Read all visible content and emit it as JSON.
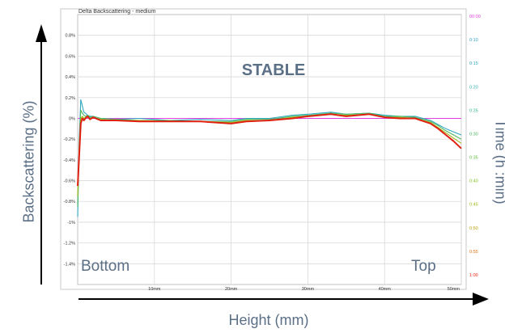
{
  "chart_data": {
    "type": "line",
    "title": "Delta Backscattering - medium",
    "annotation": "STABLE",
    "ylabel": "Backscattering (%)",
    "xlabel": "Height (mm)",
    "right_label": "Time (h :min)",
    "corner_labels": {
      "left": "Bottom",
      "right": "Top"
    },
    "x_unit": "mm",
    "xlim": [
      0,
      50
    ],
    "ylim": [
      -1.6,
      1.0
    ],
    "grid": true,
    "x_ticks": [
      10,
      20,
      30,
      40,
      50
    ],
    "x_tick_labels": [
      "10mm",
      "20mm",
      "30mm",
      "40mm",
      "50mm"
    ],
    "y_ticks": [
      0.8,
      0.6,
      0.4,
      0.2,
      0,
      -0.2,
      -0.4,
      -0.6,
      -0.8,
      -1,
      -1.2,
      -1.4
    ],
    "y_tick_labels": [
      "0.8%",
      "0.6%",
      "0.4%",
      "0.2%",
      "0%",
      "-0.2%",
      "-0.4%",
      "-0.6%",
      "-0.8%",
      "-1%",
      "-1.2%",
      "-1.4%"
    ],
    "legend": {
      "placement": "right",
      "entries": [
        {
          "label": "00:00",
          "color": "#e040e0"
        },
        {
          "label": "0:10",
          "color": "#30a0c8"
        },
        {
          "label": "0:15",
          "color": "#30a8c0"
        },
        {
          "label": "0:20",
          "color": "#30b0a8"
        },
        {
          "label": "0:25",
          "color": "#30b890"
        },
        {
          "label": "0:30",
          "color": "#50b860"
        },
        {
          "label": "0:35",
          "color": "#60c040"
        },
        {
          "label": "0:40",
          "color": "#80c020"
        },
        {
          "label": "0:45",
          "color": "#a0b818"
        },
        {
          "label": "0:50",
          "color": "#c0a010"
        },
        {
          "label": "0:55",
          "color": "#e07010"
        },
        {
          "label": "1:00",
          "color": "#e02010"
        }
      ]
    },
    "series": [
      {
        "color": "#e040e0",
        "x": [
          0,
          0.3,
          0.6,
          5,
          10,
          20,
          30,
          40,
          45,
          48,
          50
        ],
        "y": [
          0,
          0,
          0,
          0,
          0,
          0,
          0,
          0,
          0,
          0,
          0
        ]
      },
      {
        "color": "#30a8c0",
        "x": [
          0,
          0.2,
          0.4,
          0.6,
          0.8,
          1.0,
          1.3,
          1.6,
          2,
          3,
          5,
          8,
          12,
          16,
          20,
          22,
          25,
          28,
          30,
          33,
          35,
          38,
          40,
          42,
          44,
          46,
          47,
          48,
          49,
          50
        ],
        "y": [
          -0.95,
          -0.2,
          0.18,
          0.12,
          0.06,
          0.05,
          0.03,
          0.02,
          0.02,
          0.0,
          -0.01,
          0.0,
          -0.02,
          -0.01,
          -0.02,
          0.0,
          0.0,
          0.03,
          0.04,
          0.06,
          0.04,
          0.05,
          0.03,
          0.02,
          0.02,
          -0.02,
          -0.06,
          -0.1,
          -0.13,
          -0.16
        ]
      },
      {
        "color": "#50b860",
        "x": [
          0,
          0.2,
          0.4,
          0.6,
          0.8,
          1.0,
          1.3,
          1.6,
          2,
          3,
          5,
          8,
          12,
          16,
          20,
          22,
          25,
          28,
          30,
          33,
          35,
          38,
          40,
          42,
          44,
          46,
          47,
          48,
          49,
          50
        ],
        "y": [
          -0.85,
          -0.25,
          0.08,
          0.05,
          0.03,
          0.02,
          0.03,
          0.01,
          0.02,
          0.0,
          -0.01,
          -0.02,
          -0.02,
          -0.03,
          -0.03,
          -0.01,
          -0.01,
          0.02,
          0.03,
          0.05,
          0.04,
          0.05,
          0.02,
          0.02,
          0.01,
          -0.03,
          -0.07,
          -0.12,
          -0.16,
          -0.2
        ]
      },
      {
        "color": "#a0b818",
        "x": [
          0,
          0.2,
          0.4,
          0.6,
          0.8,
          1.0,
          1.3,
          1.6,
          2,
          3,
          5,
          8,
          12,
          16,
          20,
          22,
          25,
          28,
          30,
          33,
          35,
          38,
          40,
          42,
          44,
          46,
          47,
          48,
          49,
          50
        ],
        "y": [
          -0.75,
          -0.3,
          0.0,
          0.02,
          0.0,
          0.01,
          0.02,
          0.0,
          0.01,
          -0.01,
          -0.02,
          -0.02,
          -0.03,
          -0.03,
          -0.04,
          -0.02,
          -0.02,
          0.01,
          0.02,
          0.04,
          0.03,
          0.04,
          0.01,
          0.01,
          0.0,
          -0.04,
          -0.09,
          -0.14,
          -0.19,
          -0.24
        ]
      },
      {
        "color": "#e02010",
        "x": [
          0,
          0.2,
          0.4,
          0.6,
          0.8,
          1.0,
          1.3,
          1.6,
          2,
          3,
          5,
          8,
          12,
          16,
          20,
          22,
          25,
          28,
          30,
          33,
          35,
          38,
          40,
          42,
          44,
          46,
          47,
          48,
          49,
          50
        ],
        "y": [
          -0.65,
          -0.35,
          -0.05,
          0.0,
          -0.02,
          0.0,
          0.02,
          -0.01,
          0.01,
          -0.02,
          -0.02,
          -0.03,
          -0.03,
          -0.03,
          -0.05,
          -0.03,
          -0.02,
          0.0,
          0.02,
          0.04,
          0.02,
          0.04,
          0.01,
          0.0,
          0.0,
          -0.05,
          -0.1,
          -0.16,
          -0.22,
          -0.29
        ]
      }
    ]
  }
}
